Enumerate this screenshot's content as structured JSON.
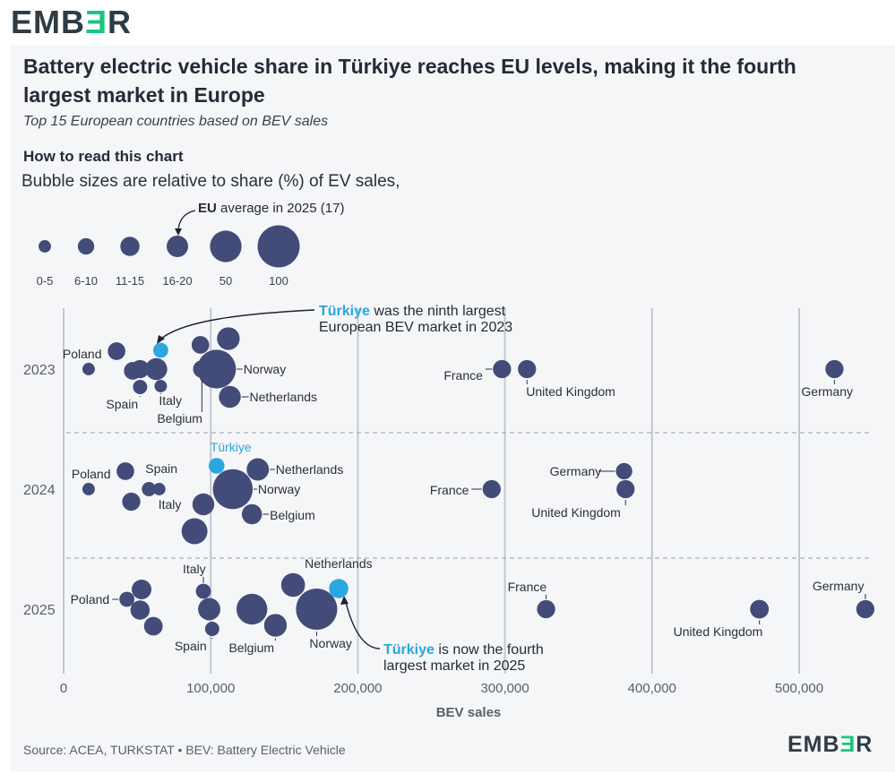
{
  "branding": {
    "logo_main": "EMB",
    "logo_accent": "Ǝ",
    "logo_end": "R"
  },
  "header": {
    "title": "Battery electric vehicle share in Türkiye reaches EU levels, making it the fourth largest market in Europe",
    "subtitle": "Top 15 European countries based on BEV sales"
  },
  "howto": {
    "heading": "How to read this chart",
    "text": "Bubble sizes are relative to share (%) of EV sales,",
    "eu_note_bold": "EU",
    "eu_note_rest": " average in 2025 (17)"
  },
  "legend": [
    {
      "label": "0-5",
      "share": 3
    },
    {
      "label": "6-10",
      "share": 8
    },
    {
      "label": "11-15",
      "share": 13
    },
    {
      "label": "16-20",
      "share": 18
    },
    {
      "label": "50",
      "share": 50
    },
    {
      "label": "100",
      "share": 100
    }
  ],
  "annotations": {
    "ninth_highlight": "Türkiye",
    "ninth_line1_rest": " was the ninth largest",
    "ninth_line2": "European BEV market in 2023",
    "fourth_highlight": "Türkiye",
    "fourth_line1_rest": " is now the fourth",
    "fourth_line2": "largest market in 2025"
  },
  "source": "Source: ACEA, TURKSTAT • BEV: Battery Electric Vehicle",
  "colors": {
    "bubble": "#434b78",
    "turkiye": "#2aa7e0",
    "grid": "#c3c7d3",
    "accent": "#19c77b",
    "text": "#2b2f3a"
  },
  "chart_data": {
    "type": "scatter",
    "xlabel": "BEV sales",
    "xlim": [
      0,
      550000
    ],
    "xticks": [
      0,
      100000,
      200000,
      300000,
      400000,
      500000
    ],
    "xtick_labels": [
      "0",
      "100,000",
      "200,000",
      "300,000",
      "400,000",
      "500,000"
    ],
    "rows": [
      "2023",
      "2024",
      "2025"
    ],
    "bubble_size_variable": "share (%) of EV sales",
    "points": [
      {
        "year": "2023",
        "country": "Poland",
        "x": 17000,
        "share": 3,
        "label": "Poland"
      },
      {
        "year": "2023",
        "country": "",
        "x": 36000,
        "share": 10,
        "label": ""
      },
      {
        "year": "2023",
        "country": "",
        "x": 52000,
        "share": 11,
        "label": ""
      },
      {
        "year": "2023",
        "country": "",
        "x": 47000,
        "share": 10,
        "label": ""
      },
      {
        "year": "2023",
        "country": "Spain",
        "x": 52000,
        "share": 5,
        "label": "Spain"
      },
      {
        "year": "2023",
        "country": "Türkiye",
        "x": 66000,
        "share": 6,
        "label": "",
        "highlight": true
      },
      {
        "year": "2023",
        "country": "",
        "x": 63000,
        "share": 19,
        "label": ""
      },
      {
        "year": "2023",
        "country": "Italy",
        "x": 66000,
        "share": 3,
        "label": "Italy"
      },
      {
        "year": "2023",
        "country": "",
        "x": 93000,
        "share": 10,
        "label": ""
      },
      {
        "year": "2023",
        "country": "Belgium",
        "x": 94000,
        "share": 10,
        "label": "Belgium"
      },
      {
        "year": "2023",
        "country": "",
        "x": 112000,
        "share": 21,
        "label": ""
      },
      {
        "year": "2023",
        "country": "Norway",
        "x": 104000,
        "share": 82,
        "label": "Norway"
      },
      {
        "year": "2023",
        "country": "Netherlands",
        "x": 113000,
        "share": 19,
        "label": "Netherlands"
      },
      {
        "year": "2023",
        "country": "France",
        "x": 298000,
        "share": 11,
        "label": "France"
      },
      {
        "year": "2023",
        "country": "United Kingdom",
        "x": 315000,
        "share": 11,
        "label": "United Kingdom"
      },
      {
        "year": "2023",
        "country": "Germany",
        "x": 524000,
        "share": 11,
        "label": "Germany"
      },
      {
        "year": "2024",
        "country": "Poland",
        "x": 17000,
        "share": 3,
        "label": "Poland"
      },
      {
        "year": "2024",
        "country": "",
        "x": 42000,
        "share": 10,
        "label": ""
      },
      {
        "year": "2024",
        "country": "",
        "x": 46000,
        "share": 11,
        "label": ""
      },
      {
        "year": "2024",
        "country": "",
        "x": 45000,
        "share": 3,
        "label": ""
      },
      {
        "year": "2024",
        "country": "Spain",
        "x": 58000,
        "share": 5,
        "label": "Spain"
      },
      {
        "year": "2024",
        "country": "Italy",
        "x": 65000,
        "share": 3,
        "label": "Italy"
      },
      {
        "year": "2024",
        "country": "Türkiye",
        "x": 104000,
        "share": 7,
        "label": "Türkiye",
        "highlight": true
      },
      {
        "year": "2024",
        "country": "Netherlands",
        "x": 132000,
        "share": 20,
        "label": "Netherlands"
      },
      {
        "year": "2024",
        "country": "",
        "x": 95000,
        "share": 19,
        "label": ""
      },
      {
        "year": "2024",
        "country": "Norway",
        "x": 115000,
        "share": 88,
        "label": "Norway"
      },
      {
        "year": "2024",
        "country": "Belgium",
        "x": 128000,
        "share": 15,
        "label": "Belgium"
      },
      {
        "year": "2024",
        "country": "",
        "x": 89000,
        "share": 30,
        "label": ""
      },
      {
        "year": "2024",
        "country": "France",
        "x": 291000,
        "share": 11,
        "label": "France"
      },
      {
        "year": "2024",
        "country": "Germany",
        "x": 381000,
        "share": 8,
        "label": "Germany"
      },
      {
        "year": "2024",
        "country": "United Kingdom",
        "x": 382000,
        "share": 11,
        "label": "United Kingdom"
      },
      {
        "year": "2025",
        "country": "Poland",
        "x": 43000,
        "share": 6,
        "label": "Poland"
      },
      {
        "year": "2025",
        "country": "",
        "x": 53000,
        "share": 14,
        "label": ""
      },
      {
        "year": "2025",
        "country": "",
        "x": 52000,
        "share": 13,
        "label": ""
      },
      {
        "year": "2025",
        "country": "",
        "x": 61000,
        "share": 12,
        "label": ""
      },
      {
        "year": "2025",
        "country": "Italy",
        "x": 95000,
        "share": 6,
        "label": "Italy"
      },
      {
        "year": "2025",
        "country": "",
        "x": 99000,
        "share": 20,
        "label": ""
      },
      {
        "year": "2025",
        "country": "Spain",
        "x": 101000,
        "share": 5,
        "label": "Spain"
      },
      {
        "year": "2025",
        "country": "",
        "x": 128000,
        "share": 47,
        "label": ""
      },
      {
        "year": "2025",
        "country": "Belgium",
        "x": 144000,
        "share": 21,
        "label": "Belgium"
      },
      {
        "year": "2025",
        "country": "Netherlands",
        "x": 156000,
        "share": 24,
        "label": "Netherlands"
      },
      {
        "year": "2025",
        "country": "Norway",
        "x": 172000,
        "share": 95,
        "label": "Norway"
      },
      {
        "year": "2025",
        "country": "Türkiye",
        "x": 187000,
        "share": 13,
        "label": "",
        "highlight": true
      },
      {
        "year": "2025",
        "country": "France",
        "x": 328000,
        "share": 11,
        "label": "France"
      },
      {
        "year": "2025",
        "country": "United Kingdom",
        "x": 473000,
        "share": 12,
        "label": "United Kingdom"
      },
      {
        "year": "2025",
        "country": "Germany",
        "x": 545000,
        "share": 11,
        "label": "Germany"
      }
    ]
  }
}
